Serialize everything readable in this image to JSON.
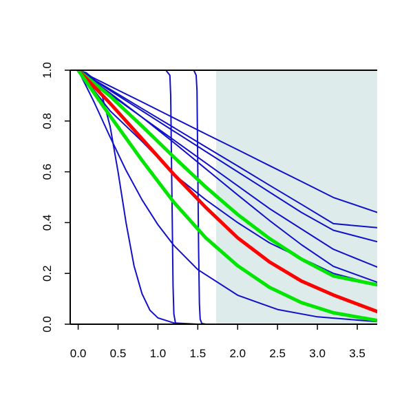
{
  "chart_data": {
    "type": "line",
    "title": "",
    "xlabel": "",
    "ylabel": "",
    "xlim": [
      -0.1,
      3.75
    ],
    "ylim": [
      0,
      1
    ],
    "grid": false,
    "legend": "none",
    "shaded_region": {
      "x_start": 1.73,
      "x_end": 3.75,
      "color": "#deebeb"
    },
    "x_ticks": [
      "0.0",
      "0.5",
      "1.0",
      "1.5",
      "2.0",
      "2.5",
      "3.0",
      "3.5"
    ],
    "y_ticks": [
      "0.0",
      "0.2",
      "0.4",
      "0.6",
      "0.8",
      "1.0"
    ],
    "series": [
      {
        "color": "#1010c8",
        "width": 2,
        "x": [
          0,
          0.4,
          0.8,
          1.2,
          1.6,
          2.0,
          2.4,
          2.8,
          3.2,
          3.75
        ],
        "y": [
          1.0,
          0.937,
          0.875,
          0.812,
          0.749,
          0.687,
          0.624,
          0.562,
          0.499,
          0.44
        ]
      },
      {
        "color": "#1010c8",
        "width": 2,
        "x": [
          0,
          0.4,
          0.8,
          1.2,
          1.6,
          2.0,
          2.4,
          2.8,
          3.2,
          3.75
        ],
        "y": [
          1.0,
          0.925,
          0.849,
          0.774,
          0.698,
          0.623,
          0.547,
          0.472,
          0.396,
          0.38
        ]
      },
      {
        "color": "#1010c8",
        "width": 2,
        "x": [
          0,
          0.4,
          0.8,
          1.2,
          1.6,
          2.0,
          2.4,
          2.8,
          3.2,
          3.75
        ],
        "y": [
          1.0,
          0.92,
          0.84,
          0.76,
          0.68,
          0.6,
          0.52,
          0.44,
          0.37,
          0.325
        ]
      },
      {
        "color": "#1010c8",
        "width": 2,
        "x": [
          0,
          0.4,
          0.8,
          1.2,
          1.6,
          2.0,
          2.4,
          2.8,
          3.2,
          3.75
        ],
        "y": [
          1.0,
          0.905,
          0.815,
          0.725,
          0.635,
          0.545,
          0.455,
          0.375,
          0.295,
          0.225
        ]
      },
      {
        "color": "#1010c8",
        "width": 2,
        "x": [
          0,
          0.4,
          0.8,
          1.2,
          1.6,
          2.0,
          2.4,
          2.8,
          3.2,
          3.75
        ],
        "y": [
          1.0,
          0.91,
          0.815,
          0.715,
          0.612,
          0.509,
          0.408,
          0.313,
          0.228,
          0.165
        ]
      },
      {
        "color": "#1010c8",
        "width": 2,
        "x": [
          0,
          0.4,
          0.8,
          1.2,
          1.6,
          2.0,
          2.4,
          2.8,
          3.2,
          3.75
        ],
        "y": [
          1.0,
          0.84,
          0.72,
          0.59,
          0.49,
          0.4,
          0.32,
          0.26,
          0.2,
          0.155
        ]
      },
      {
        "color": "#1010c8",
        "width": 2,
        "x": [
          0,
          0.2,
          0.4,
          0.6,
          0.8,
          1.0,
          1.2,
          1.5,
          2.0,
          2.5,
          3.0,
          3.75
        ],
        "y": [
          1.0,
          0.874,
          0.737,
          0.606,
          0.49,
          0.392,
          0.31,
          0.215,
          0.114,
          0.058,
          0.029,
          0.01
        ]
      },
      {
        "color": "#1010c8",
        "width": 2,
        "x": [
          0,
          0.1,
          0.2,
          0.3,
          0.4,
          0.5,
          0.6,
          0.7,
          0.8,
          0.9,
          1.0,
          1.2,
          1.5,
          2.0,
          3.75
        ],
        "y": [
          1.0,
          0.99,
          0.965,
          0.9,
          0.78,
          0.6,
          0.4,
          0.23,
          0.12,
          0.055,
          0.025,
          0.005,
          0.0,
          0.0,
          0.0
        ]
      },
      {
        "color": "#1010c8",
        "width": 2,
        "x": [
          0,
          1.1,
          1.15,
          1.16,
          1.17,
          1.18,
          1.19,
          1.2,
          1.22,
          1.25,
          3.75
        ],
        "y": [
          1.0,
          1.0,
          0.98,
          0.9,
          0.65,
          0.4,
          0.15,
          0.04,
          0.005,
          0.0,
          0.0
        ]
      },
      {
        "color": "#1010c8",
        "width": 2,
        "x": [
          0,
          1.45,
          1.48,
          1.49,
          1.5,
          1.51,
          1.52,
          1.53,
          1.55,
          1.6,
          3.75
        ],
        "y": [
          1.0,
          1.0,
          0.98,
          0.92,
          0.6,
          0.3,
          0.08,
          0.02,
          0.003,
          0.0,
          0.0
        ]
      },
      {
        "color": "#00e600",
        "width": 5,
        "x": [
          0,
          0.4,
          0.8,
          1.2,
          1.6,
          2.0,
          2.4,
          2.8,
          3.2,
          3.75
        ],
        "y": [
          1.0,
          0.898,
          0.78,
          0.658,
          0.54,
          0.432,
          0.337,
          0.256,
          0.19,
          0.155
        ]
      },
      {
        "color": "#ff0000",
        "width": 5,
        "x": [
          0,
          0.4,
          0.8,
          1.2,
          1.6,
          2.0,
          2.4,
          2.8,
          3.2,
          3.75
        ],
        "y": [
          1.0,
          0.87,
          0.73,
          0.59,
          0.46,
          0.34,
          0.245,
          0.17,
          0.115,
          0.05
        ]
      },
      {
        "color": "#00e600",
        "width": 5,
        "x": [
          0,
          0.4,
          0.8,
          1.2,
          1.6,
          2.0,
          2.4,
          2.8,
          3.2,
          3.75
        ],
        "y": [
          1.0,
          0.82,
          0.645,
          0.48,
          0.34,
          0.23,
          0.145,
          0.085,
          0.045,
          0.015
        ]
      }
    ]
  }
}
